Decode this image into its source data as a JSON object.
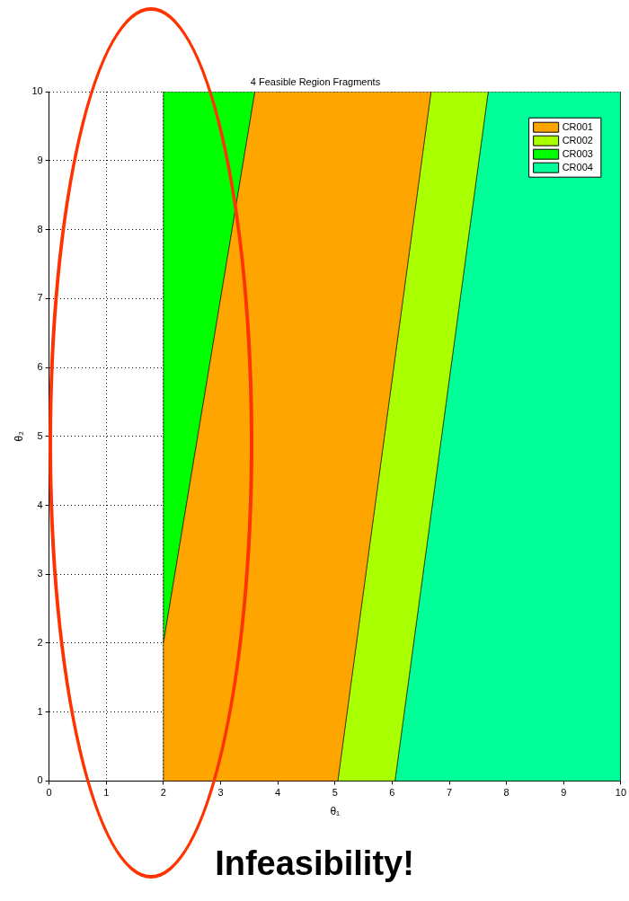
{
  "chart_data": {
    "type": "area",
    "title": "4 Feasible Region Fragments",
    "xlabel": "θ₁",
    "ylabel": "θ₂",
    "xlim": [
      0,
      10
    ],
    "ylim": [
      0,
      10
    ],
    "xticks": [
      0,
      1,
      2,
      3,
      4,
      5,
      6,
      7,
      8,
      9,
      10
    ],
    "yticks": [
      0,
      1,
      2,
      3,
      4,
      5,
      6,
      7,
      8,
      9,
      10
    ],
    "grid": true,
    "legend": "top right",
    "series": [
      {
        "name": "CR001",
        "color": "#ffa500",
        "x": [
          2,
          2,
          3.6,
          6.68,
          5.05,
          2
        ],
        "values": [
          0,
          2,
          10,
          10,
          0,
          0
        ]
      },
      {
        "name": "CR002",
        "color": "#aaff00",
        "x": [
          5.05,
          6.68,
          7.68,
          6.05,
          5.05
        ],
        "values": [
          0,
          10,
          10,
          0,
          0
        ]
      },
      {
        "name": "CR003",
        "color": "#00ff00",
        "x": [
          2,
          2,
          3.6,
          2
        ],
        "values": [
          2,
          10,
          10,
          2
        ]
      },
      {
        "name": "CR004",
        "color": "#00ff99",
        "x": [
          6.05,
          7.68,
          10,
          10,
          6.05
        ],
        "values": [
          0,
          10,
          10,
          0,
          0
        ]
      }
    ],
    "annotations": [
      "Infeasibility!"
    ]
  }
}
